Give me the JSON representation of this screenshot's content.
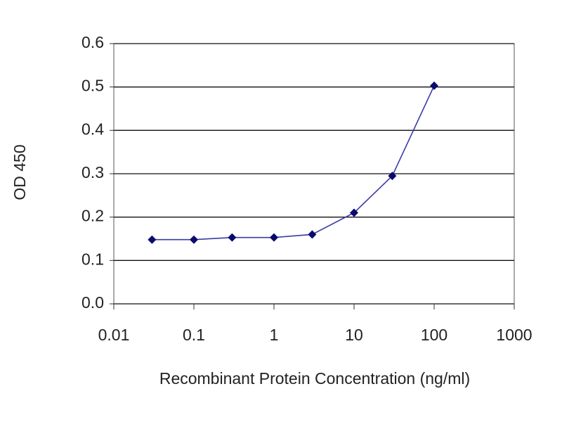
{
  "chart_data": {
    "type": "line",
    "x_label": "Recombinant Protein Concentration (ng/ml)",
    "y_label": "OD 450",
    "x": [
      0.03,
      0.1,
      0.3,
      1,
      3,
      10,
      30,
      100
    ],
    "values": [
      0.148,
      0.148,
      0.153,
      0.153,
      0.16,
      0.21,
      0.295,
      0.503
    ],
    "color": "#3a3aa8",
    "marker_color": "#0a0a6e",
    "xscale": "log",
    "xlim": [
      0.01,
      1000
    ],
    "xticks": [
      0.01,
      0.1,
      1,
      10,
      100,
      1000
    ],
    "ylim": [
      0,
      0.6
    ],
    "yticks": [
      {
        "value": 0,
        "label": "0.0"
      },
      0.1,
      0.2,
      0.3,
      0.4,
      0.5,
      0.6
    ],
    "grid": true
  }
}
